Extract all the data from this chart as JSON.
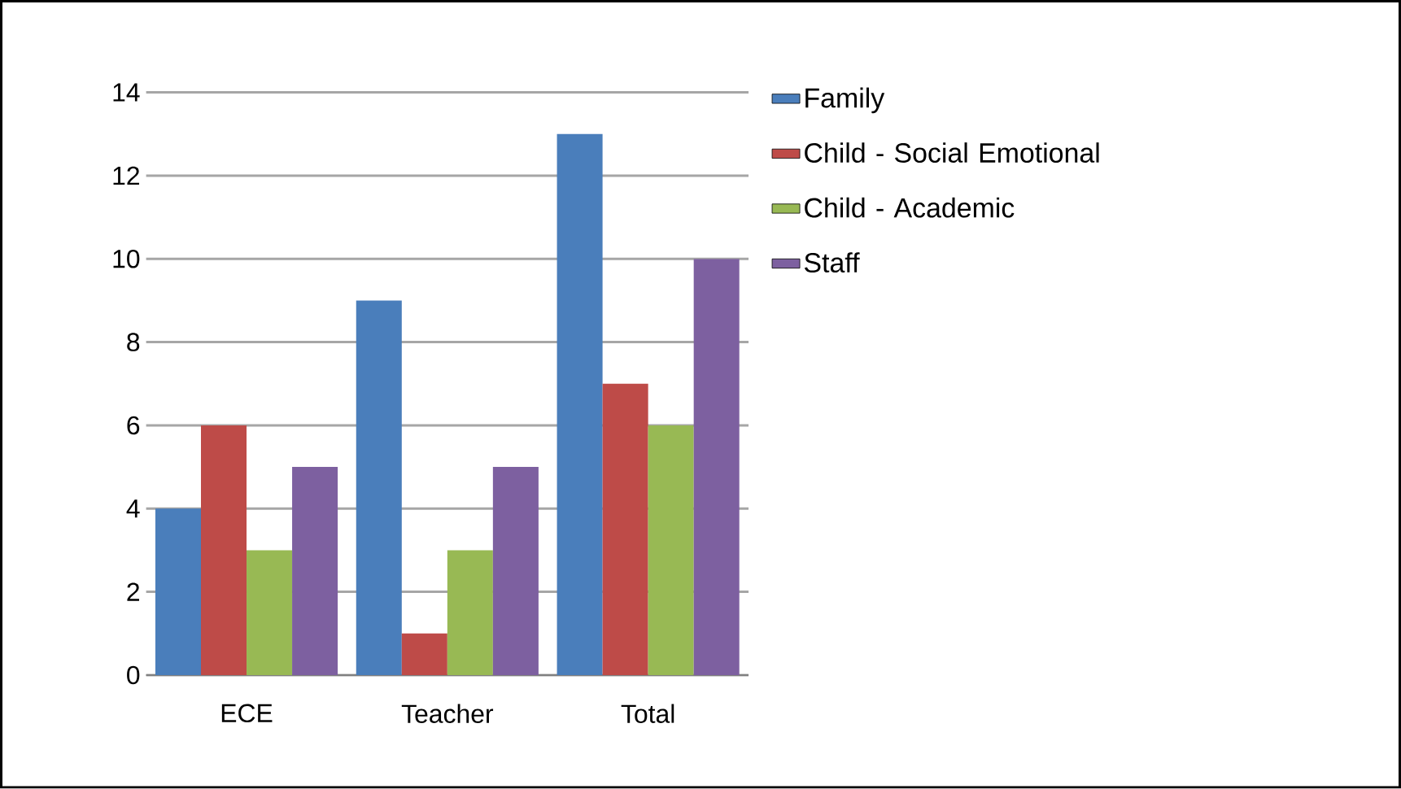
{
  "chart_data": {
    "type": "bar",
    "categories": [
      "ECE",
      "Teacher",
      "Total"
    ],
    "series": [
      {
        "name": "Family",
        "color": "#4a7ebb",
        "values": [
          4,
          9,
          13
        ]
      },
      {
        "name": "Child - Social Emotional",
        "color": "#be4b48",
        "values": [
          6,
          1,
          7
        ]
      },
      {
        "name": "Child - Academic",
        "color": "#98b954",
        "values": [
          3,
          3,
          6
        ]
      },
      {
        "name": "Staff",
        "color": "#7d60a0",
        "values": [
          5,
          5,
          10
        ]
      }
    ],
    "ylim": [
      0,
      14
    ],
    "yticks": [
      0,
      2,
      4,
      6,
      8,
      10,
      12,
      14
    ],
    "grid": "y",
    "legend": "right"
  }
}
